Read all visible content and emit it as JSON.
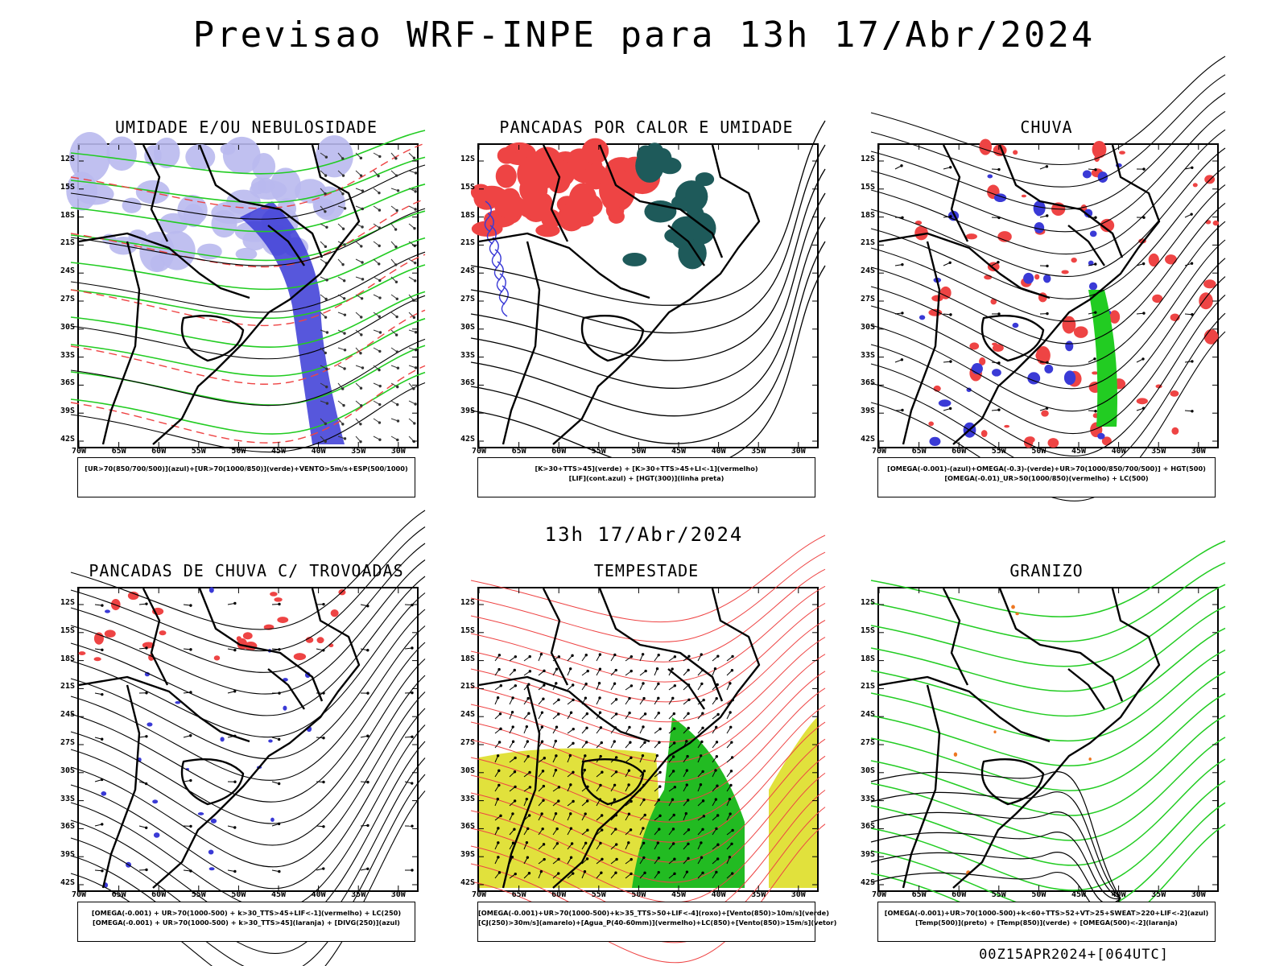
{
  "title": "Previsao WRF-INPE  para 13h 17/Abr/2024",
  "subtitle": "13h 17/Abr/2024",
  "run_stamp": "00Z15APR2024+[064UTC]",
  "lat_labels": [
    "12S",
    "15S",
    "18S",
    "21S",
    "24S",
    "27S",
    "30S",
    "33S",
    "36S",
    "39S",
    "42S"
  ],
  "lon_labels": [
    "70W",
    "65W",
    "60W",
    "55W",
    "50W",
    "45W",
    "40W",
    "35W",
    "30W"
  ],
  "colors": {
    "blue": "#3a3ad6",
    "lightblue": "#b9b9ee",
    "green": "#22cc22",
    "red": "#ee4444",
    "teal": "#1e5a5a",
    "yellow": "#e1e13c",
    "orange": "#ee7722"
  },
  "panels": [
    {
      "title": "UMIDADE E/OU NEBULOSIDADE",
      "legend": [
        "[UR>70(850/700/500)](azul)+[UR>70(1000/850)](verde)+VENTO>5m/s+ESP(500/1000)"
      ]
    },
    {
      "title": "PANCADAS POR CALOR E UMIDADE",
      "legend": [
        "[K>30+TTS>45](verde) + [K>30+TTS>45+LI<-1](vermelho)",
        "[LIF](cont.azul) + [HGT(300)](linha preta)"
      ]
    },
    {
      "title": "CHUVA",
      "legend": [
        "[OMEGA(-0.001)-(azul)+OMEGA(-0.3)-(verde)+UR>70(1000/850/700/500)] + HGT(500)",
        "[OMEGA(-0.01)_UR>50(1000/850)(vermelho) + LC(500)"
      ]
    },
    {
      "title": "PANCADAS DE CHUVA C/ TROVOADAS",
      "legend": [
        "[OMEGA(-0.001) + UR>70(1000-500) + k>30_TTS>45+LIF<-1](vermelho) + LC(250)",
        "[OMEGA(-0.001) + UR>70(1000-500) + k>30_TTS>45](laranja) + [DIVG(250)](azul)"
      ]
    },
    {
      "title": "TEMPESTADE",
      "legend": [
        "[OMEGA(-0.001)+UR>70(1000-500)+k>35_TTS>50+LIF<-4](roxo)+[Vento(850)>10m/s](verde)",
        "[CJ(250)>30m/s](amarelo)+[Agua_P(40-60mm)](vermelho)+LC(850)+[Vento(850)>15m/s](vetor)"
      ]
    },
    {
      "title": "GRANIZO",
      "legend": [
        "[OMEGA(-0.001)+UR>70(1000-500)+k<60+TTS>52+VT>25+SWEAT>220+LIF<-2](azul)",
        "[Temp(500)](preto) + [Temp(850)](verde) + [OMEGA(500)<-2](laranja)"
      ]
    }
  ]
}
